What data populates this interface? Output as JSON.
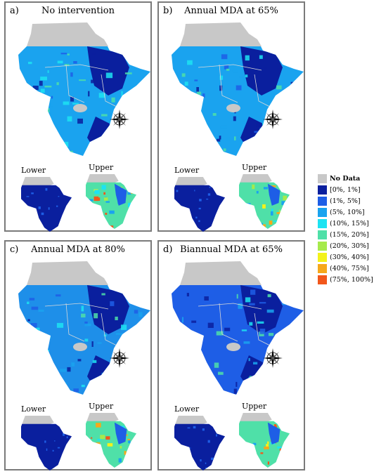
{
  "panels": [
    {
      "label": "a)",
      "title": "No intervention",
      "lower_label": "Lower",
      "upper_label": "Upper"
    },
    {
      "label": "b)",
      "title": "Annual MDA at 65%",
      "lower_label": "Lower",
      "upper_label": "Upper"
    },
    {
      "label": "c)",
      "title": "Annual MDA at 80%",
      "lower_label": "Lower",
      "upper_label": "Upper"
    },
    {
      "label": "d)",
      "title": "Biannual MDA at 65%",
      "lower_label": "Lower",
      "upper_label": "Upper"
    }
  ],
  "compass": {
    "north": "N",
    "south": "S",
    "east": "E",
    "west": "W"
  },
  "legend": [
    {
      "label": "No Data",
      "color": "#c8c8c8",
      "bold": true
    },
    {
      "label": "[0%, 1%]",
      "color": "#0a1f9e",
      "bold": false
    },
    {
      "label": "(1%, 5%]",
      "color": "#1e5ee6",
      "bold": false
    },
    {
      "label": "(5%, 10%]",
      "color": "#1aa3ef",
      "bold": false
    },
    {
      "label": "(10%, 15%]",
      "color": "#1de3f2",
      "bold": false
    },
    {
      "label": "(15%, 20%]",
      "color": "#4fe0a8",
      "bold": false
    },
    {
      "label": "(20%, 30%]",
      "color": "#a6ea4c",
      "bold": false
    },
    {
      "label": "(30%, 40%]",
      "color": "#f3f21a",
      "bold": false
    },
    {
      "label": "(40%, 75%]",
      "color": "#f6a81b",
      "bold": false
    },
    {
      "label": "(75%, 100%]",
      "color": "#f2571b",
      "bold": false
    }
  ]
}
